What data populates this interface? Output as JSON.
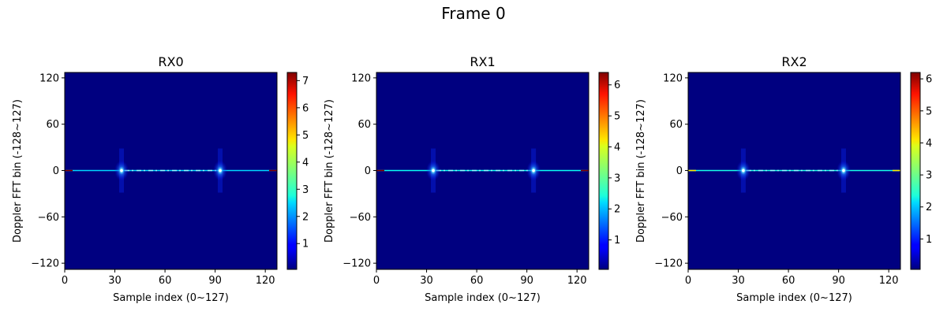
{
  "figure": {
    "suptitle": "Frame 0"
  },
  "colors": {
    "background": "#00007f",
    "line_cyan": "#40ffc0",
    "peak_center": "#ffffff"
  },
  "chart_data": [
    {
      "type": "heatmap",
      "title": "RX0",
      "xlabel": "Sample index (0~127)",
      "ylabel": "Doppler FFT bin (-128~127)",
      "xlim": [
        0,
        127
      ],
      "ylim": [
        -128,
        127
      ],
      "xticks": [
        0,
        30,
        60,
        90,
        120
      ],
      "yticks": [
        120,
        60,
        0,
        -60,
        -120
      ],
      "colormap": "jet",
      "colorbar": {
        "min": 0.05,
        "max": 7.3,
        "ticks": [
          1,
          2,
          3,
          4,
          5,
          6,
          7
        ]
      },
      "zero_doppler_line": {
        "doppler_bin": 0,
        "typical_value": 2.5,
        "edge_value": 7.3
      },
      "peaks": [
        {
          "sample_index": 34,
          "doppler_bin": 0,
          "value": 3.0
        },
        {
          "sample_index": 93,
          "doppler_bin": 0,
          "value": 3.0
        }
      ]
    },
    {
      "type": "heatmap",
      "title": "RX1",
      "xlabel": "Sample index (0~127)",
      "ylabel": "Doppler FFT bin (-128~127)",
      "xlim": [
        0,
        127
      ],
      "ylim": [
        -128,
        127
      ],
      "xticks": [
        0,
        30,
        60,
        90,
        120
      ],
      "yticks": [
        120,
        60,
        0,
        -60,
        -120
      ],
      "colormap": "jet",
      "colorbar": {
        "min": 0.05,
        "max": 6.4,
        "ticks": [
          1,
          2,
          3,
          4,
          5,
          6
        ]
      },
      "zero_doppler_line": {
        "doppler_bin": 0,
        "typical_value": 2.5,
        "edge_value": 6.4
      },
      "peaks": [
        {
          "sample_index": 34,
          "doppler_bin": 0,
          "value": 3.2
        },
        {
          "sample_index": 94,
          "doppler_bin": 0,
          "value": 3.2
        }
      ]
    },
    {
      "type": "heatmap",
      "title": "RX2",
      "xlabel": "Sample index (0~127)",
      "ylabel": "Doppler FFT bin (-128~127)",
      "xlim": [
        0,
        127
      ],
      "ylim": [
        -128,
        127
      ],
      "xticks": [
        0,
        30,
        60,
        90,
        120
      ],
      "yticks": [
        120,
        60,
        0,
        -60,
        -120
      ],
      "colormap": "jet",
      "colorbar": {
        "min": 0.05,
        "max": 6.2,
        "ticks": [
          1,
          2,
          3,
          4,
          5,
          6
        ]
      },
      "zero_doppler_line": {
        "doppler_bin": 0,
        "typical_value": 2.5,
        "edge_value": 4.0
      },
      "peaks": [
        {
          "sample_index": 33,
          "doppler_bin": 0,
          "value": 3.0
        },
        {
          "sample_index": 93,
          "doppler_bin": 0,
          "value": 3.0
        }
      ]
    }
  ]
}
